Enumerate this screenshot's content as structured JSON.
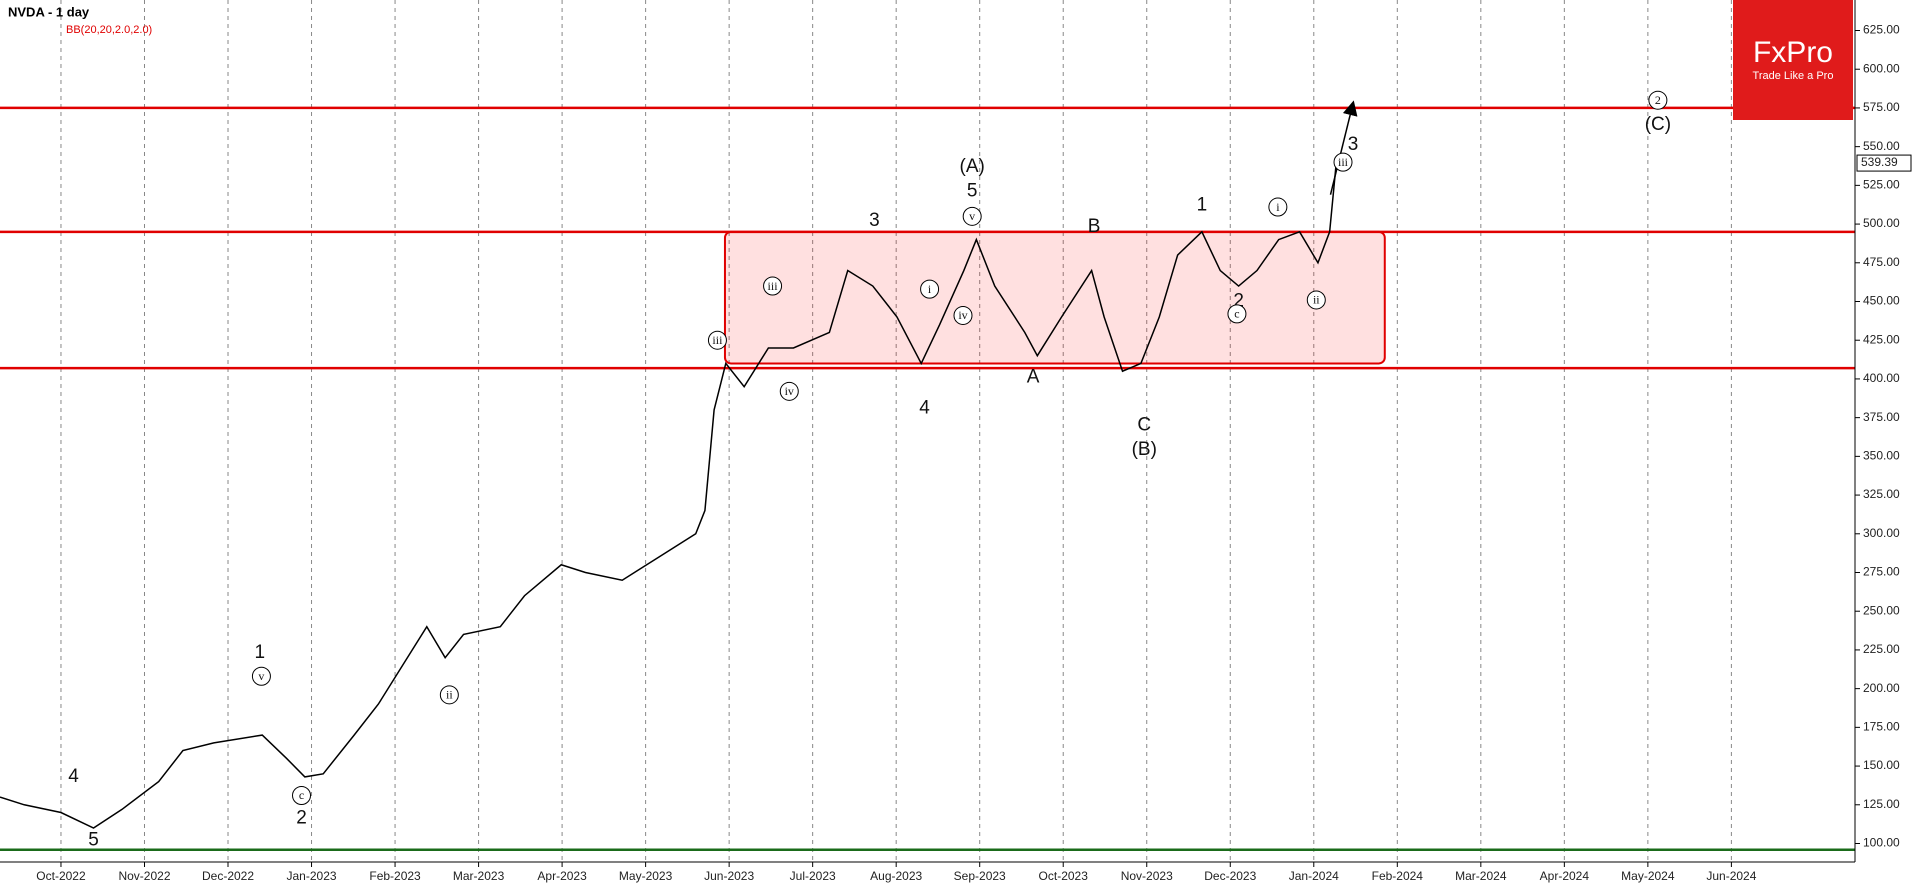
{
  "chart_data": {
    "type": "line",
    "title": "NVDA - 1 day",
    "subtitle": "BB(20,20,2.0,2.0)",
    "brand": {
      "name": "FxPro",
      "tagline": "Trade Like a Pro"
    },
    "x": [
      -0.73,
      -0.44,
      0,
      0.39,
      0.73,
      1.17,
      1.46,
      1.83,
      2.41,
      2.7,
      2.92,
      3.14,
      3.51,
      3.8,
      4.09,
      4.38,
      4.6,
      4.82,
      5.26,
      5.55,
      5.99,
      6.28,
      6.72,
      7.16,
      7.6,
      7.71,
      7.82,
      7.96,
      8.18,
      8.47,
      8.77,
      9.2,
      9.42,
      9.72,
      10.01,
      10.3,
      10.52,
      10.81,
      10.96,
      11.18,
      11.54,
      11.69,
      11.98,
      12.34,
      12.49,
      12.71,
      12.93,
      13.15,
      13.37,
      13.66,
      13.88,
      14.1,
      14.32,
      14.58,
      14.83,
      15.05,
      15.19,
      15.27
    ],
    "values": [
      130,
      125,
      120,
      110,
      122,
      140,
      160,
      165,
      170,
      155,
      143,
      145,
      170,
      190,
      215,
      240,
      220,
      235,
      240,
      260,
      280,
      275,
      270,
      285,
      300,
      315,
      380,
      410,
      395,
      420,
      420,
      430,
      470,
      460,
      440,
      410,
      435,
      470,
      490,
      460,
      430,
      415,
      440,
      470,
      440,
      405,
      410,
      440,
      480,
      495,
      470,
      460,
      470,
      490,
      495,
      475,
      495,
      540
    ],
    "color": "#000000",
    "xlim": [
      -0.73,
      21.48
    ],
    "xticks": [
      {
        "value": 0,
        "label": "Oct-2022"
      },
      {
        "value": 1,
        "label": "Nov-2022"
      },
      {
        "value": 2,
        "label": "Dec-2022"
      },
      {
        "value": 3,
        "label": "Jan-2023"
      },
      {
        "value": 4,
        "label": "Feb-2023"
      },
      {
        "value": 5,
        "label": "Mar-2023"
      },
      {
        "value": 6,
        "label": "Apr-2023"
      },
      {
        "value": 7,
        "label": "May-2023"
      },
      {
        "value": 8,
        "label": "Jun-2023"
      },
      {
        "value": 9,
        "label": "Jul-2023"
      },
      {
        "value": 10,
        "label": "Aug-2023"
      },
      {
        "value": 11,
        "label": "Sep-2023"
      },
      {
        "value": 12,
        "label": "Oct-2023"
      },
      {
        "value": 13,
        "label": "Nov-2023"
      },
      {
        "value": 14,
        "label": "Dec-2023"
      },
      {
        "value": 15,
        "label": "Jan-2024"
      },
      {
        "value": 16,
        "label": "Feb-2024"
      },
      {
        "value": 17,
        "label": "Mar-2024"
      },
      {
        "value": 18,
        "label": "Apr-2024"
      },
      {
        "value": 19,
        "label": "May-2024"
      },
      {
        "value": 20,
        "label": "Jun-2024"
      }
    ],
    "ylim": [
      88.05,
      644.7
    ],
    "yticks": [
      {
        "value": 100,
        "label": "100.00"
      },
      {
        "value": 125,
        "label": "125.00"
      },
      {
        "value": 150,
        "label": "150.00"
      },
      {
        "value": 175,
        "label": "175.00"
      },
      {
        "value": 200,
        "label": "200.00"
      },
      {
        "value": 225,
        "label": "225.00"
      },
      {
        "value": 250,
        "label": "250.00"
      },
      {
        "value": 275,
        "label": "275.00"
      },
      {
        "value": 300,
        "label": "300.00"
      },
      {
        "value": 325,
        "label": "325.00"
      },
      {
        "value": 350,
        "label": "350.00"
      },
      {
        "value": 375,
        "label": "375.00"
      },
      {
        "value": 400,
        "label": "400.00"
      },
      {
        "value": 425,
        "label": "425.00"
      },
      {
        "value": 450,
        "label": "450.00"
      },
      {
        "value": 475,
        "label": "475.00"
      },
      {
        "value": 500,
        "label": "500.00"
      },
      {
        "value": 525,
        "label": "525.00"
      },
      {
        "value": 550,
        "label": "550.00"
      },
      {
        "value": 575,
        "label": "575.00"
      },
      {
        "value": 600,
        "label": "600.00"
      },
      {
        "value": 625,
        "label": "625.00"
      }
    ],
    "grid": true,
    "last_price": 539.39,
    "levels": [
      {
        "value": 575,
        "color": "#e00000"
      },
      {
        "value": 495,
        "color": "#e00000"
      },
      {
        "value": 407,
        "color": "#e00000"
      },
      {
        "value": 96,
        "color": "#1a6b1a"
      }
    ],
    "zone": {
      "x": [
        7.95,
        15.85
      ],
      "y": [
        410,
        495
      ],
      "color": "#e00000"
    },
    "projection": {
      "x": [
        15.2,
        15.47
      ],
      "y": [
        519,
        578
      ]
    },
    "annotations": [
      {
        "text": "(A)",
        "x": 10.91,
        "y": 537,
        "circled": false
      },
      {
        "text": "5",
        "x": 10.91,
        "y": 521,
        "circled": false
      },
      {
        "text": "(B)",
        "x": 12.97,
        "y": 354,
        "circled": false
      },
      {
        "text": "C",
        "x": 12.97,
        "y": 370,
        "circled": false
      },
      {
        "text": "(C)",
        "x": 19.12,
        "y": 564,
        "circled": false
      },
      {
        "text": "2",
        "x": 19.12,
        "y": 580,
        "circled": true
      },
      {
        "text": "3",
        "x": 9.74,
        "y": 502,
        "circled": false
      },
      {
        "text": "4",
        "x": 10.34,
        "y": 381,
        "circled": false
      },
      {
        "text": "A",
        "x": 11.64,
        "y": 401,
        "circled": false
      },
      {
        "text": "B",
        "x": 12.37,
        "y": 498,
        "circled": false
      },
      {
        "text": "1",
        "x": 13.66,
        "y": 512,
        "circled": false
      },
      {
        "text": "2",
        "x": 14.1,
        "y": 450,
        "circled": false
      },
      {
        "text": "3",
        "x": 15.47,
        "y": 551,
        "circled": false
      },
      {
        "text": "1",
        "x": 2.38,
        "y": 223,
        "circled": false
      },
      {
        "text": "2",
        "x": 2.88,
        "y": 116,
        "circled": false
      },
      {
        "text": "4",
        "x": 0.15,
        "y": 143,
        "circled": false
      },
      {
        "text": "5",
        "x": 0.39,
        "y": 102,
        "circled": false
      },
      {
        "text": "iii",
        "x": 15.35,
        "y": 540,
        "circled": true
      },
      {
        "text": "ii",
        "x": 15.03,
        "y": 451,
        "circled": true
      },
      {
        "text": "i",
        "x": 14.57,
        "y": 511,
        "circled": true
      },
      {
        "text": "c",
        "x": 14.08,
        "y": 442,
        "circled": true
      },
      {
        "text": "iv",
        "x": 10.8,
        "y": 441,
        "circled": true
      },
      {
        "text": "i",
        "x": 10.4,
        "y": 458,
        "circled": true
      },
      {
        "text": "v",
        "x": 10.91,
        "y": 505,
        "circled": true
      },
      {
        "text": "ii",
        "x": 4.65,
        "y": 196,
        "circled": true
      },
      {
        "text": "v",
        "x": 2.4,
        "y": 208,
        "circled": true
      },
      {
        "text": "c",
        "x": 2.88,
        "y": 131,
        "circled": true
      },
      {
        "text": "iii",
        "x": 8.52,
        "y": 460,
        "circled": true
      },
      {
        "text": "iv",
        "x": 8.72,
        "y": 392,
        "circled": true
      },
      {
        "text": "iii",
        "x": 7.86,
        "y": 425,
        "circled": true
      }
    ]
  }
}
